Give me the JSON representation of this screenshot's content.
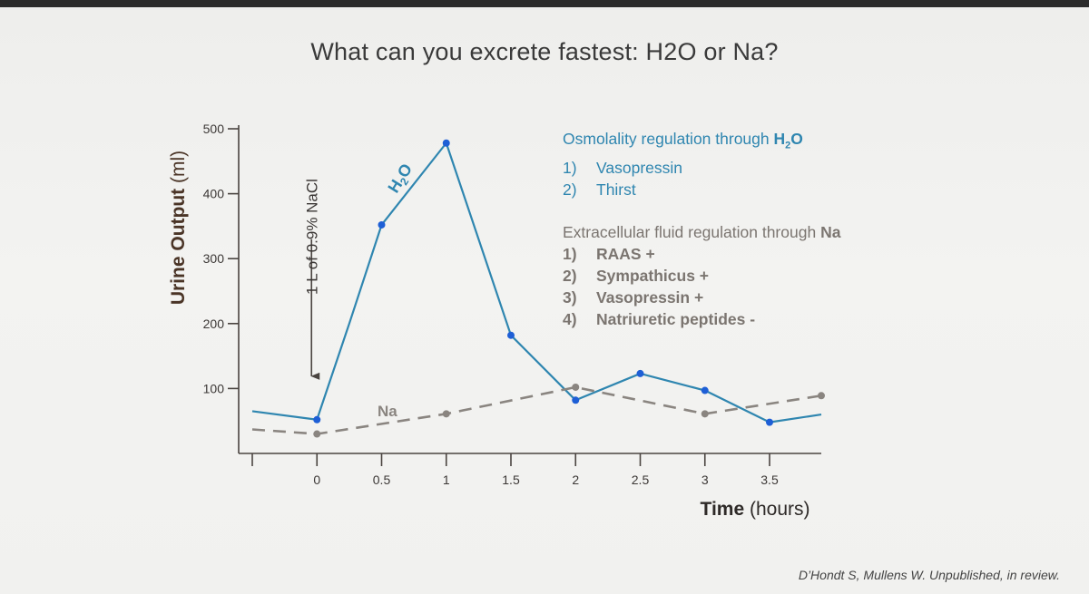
{
  "slide": {
    "title": "What can you excrete fastest: H2O or Na?",
    "citation": "D’Hondt S, Mullens W. Unpublished, in review."
  },
  "legend": {
    "h2o_heading_prefix": "Osmolality regulation through ",
    "h2o_heading_bold": "H",
    "h2o_heading_sub": "2",
    "h2o_heading_bold2": "O",
    "h2o_items": [
      {
        "num": "1)",
        "text": "Vasopressin"
      },
      {
        "num": "2)",
        "text": "Thirst"
      }
    ],
    "na_heading_prefix": "Extracellular fluid regulation through ",
    "na_heading_bold": "Na",
    "na_items": [
      {
        "num": "1)",
        "text": "RAAS +"
      },
      {
        "num": "2)",
        "text": "Sympathicus +"
      },
      {
        "num": "3)",
        "text": "Vasopressin +"
      },
      {
        "num": "4)",
        "text": "Natriuretic peptides -"
      }
    ]
  },
  "chart_data": {
    "type": "line",
    "title": "",
    "ylabel": "Urine Output (ml)",
    "xlabel_bold": "Time",
    "xlabel_rest": " (hours)",
    "ylim": [
      0,
      500
    ],
    "xlim": [
      -0.5,
      3.9
    ],
    "yticks": [
      100,
      200,
      300,
      400,
      500
    ],
    "xticks": [
      0,
      0.5,
      1,
      1.5,
      2,
      2.5,
      3,
      3.5
    ],
    "xtick_labels": [
      "0",
      "0.5",
      "1",
      "1.5",
      "2",
      "2.5",
      "3",
      "3.5"
    ],
    "ytick_labels": [
      "100",
      "200",
      "300",
      "400",
      "500"
    ],
    "grid": false,
    "series": [
      {
        "name": "H2O",
        "color": "#2f86b0",
        "marker_color": "#1e5fd6",
        "x": [
          -0.5,
          0,
          0.25,
          0.5,
          1,
          1.5,
          2,
          2.5,
          3,
          3.5,
          3.9
        ],
        "y": [
          65,
          52,
          200,
          352,
          478,
          182,
          82,
          123,
          97,
          48,
          60
        ],
        "markers": [
          false,
          true,
          false,
          true,
          true,
          true,
          true,
          true,
          true,
          true,
          false
        ]
      },
      {
        "name": "Na",
        "color": "#8a8580",
        "marker_color": "#8a8580",
        "dashed": true,
        "x": [
          -0.5,
          0,
          1,
          2,
          3,
          3.9
        ],
        "y": [
          37,
          30,
          61,
          102,
          61,
          89
        ],
        "markers": [
          false,
          true,
          true,
          true,
          true,
          true
        ]
      }
    ],
    "annotations": [
      {
        "text": "1 L of 0.9% NaCl",
        "x": 0,
        "y_from": 330,
        "y_to": 105,
        "arrow": "down"
      }
    ]
  }
}
